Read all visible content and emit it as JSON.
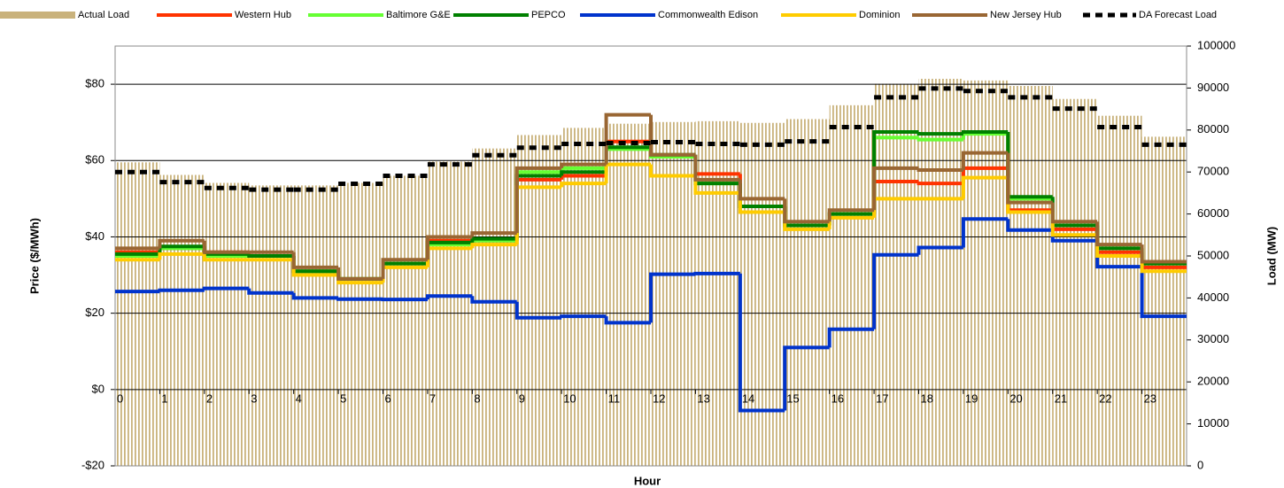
{
  "chart_data": {
    "type": "step-line",
    "x_label": "Hour",
    "y_label": "Price ($/MWh)",
    "y2_label": "Load (MW)",
    "x": [
      0,
      1,
      2,
      3,
      4,
      5,
      6,
      7,
      8,
      9,
      10,
      11,
      12,
      13,
      14,
      15,
      16,
      17,
      18,
      19,
      20,
      21,
      22,
      23
    ],
    "xlim": [
      0,
      24
    ],
    "xticks": [
      0,
      1,
      2,
      3,
      4,
      5,
      6,
      7,
      8,
      9,
      10,
      11,
      12,
      13,
      14,
      15,
      16,
      17,
      18,
      19,
      20,
      21,
      22,
      23
    ],
    "ylim": [
      -20,
      90
    ],
    "yticks": [
      {
        "value": -20,
        "label": "-$20"
      },
      {
        "value": 0,
        "label": "$0"
      },
      {
        "value": 20,
        "label": "$20"
      },
      {
        "value": 40,
        "label": "$40"
      },
      {
        "value": 60,
        "label": "$60"
      },
      {
        "value": 80,
        "label": "$80"
      }
    ],
    "y2lim": [
      0,
      100000
    ],
    "y2ticks": [
      0,
      10000,
      20000,
      30000,
      40000,
      50000,
      60000,
      70000,
      80000,
      90000,
      100000
    ],
    "grid": true,
    "series": [
      {
        "name": "Actual Load",
        "color": "#c9b27c",
        "axis": "y2",
        "style": "bar",
        "values": [
          72300,
          69300,
          67400,
          66800,
          66800,
          67400,
          69100,
          72500,
          75600,
          78800,
          80500,
          81500,
          81900,
          82100,
          81700,
          82600,
          85900,
          91000,
          92200,
          91800,
          90500,
          87400,
          83400,
          78400
        ]
      },
      {
        "name": "Western Hub",
        "color": "#ff3300",
        "values": [
          36,
          37,
          36,
          35,
          31,
          29,
          33,
          39,
          39,
          55,
          56,
          65,
          61,
          56.5,
          48,
          43,
          46,
          54.5,
          54,
          58,
          47,
          42,
          36,
          32
        ]
      },
      {
        "name": "Baltimore G&E",
        "color": "#66ff33",
        "values": [
          35,
          37,
          35,
          35,
          31,
          29,
          33,
          38,
          39,
          57,
          58,
          63,
          61,
          54,
          48,
          43,
          46,
          66,
          65.5,
          67,
          50,
          43,
          37,
          33
        ]
      },
      {
        "name": "PEPCO",
        "color": "#008000",
        "values": [
          35.5,
          37.5,
          35.5,
          35,
          31,
          29,
          33,
          38.5,
          39.5,
          56,
          57,
          63.5,
          61.5,
          54,
          48,
          43,
          46,
          67.5,
          67,
          67.5,
          50.5,
          43,
          37,
          33
        ]
      },
      {
        "name": "Commonwealth Edison",
        "color": "#0033cc",
        "values": [
          25.7,
          26,
          26.5,
          25.3,
          24,
          23.7,
          23.6,
          24.5,
          23,
          18.8,
          19.2,
          17.5,
          30.2,
          30.4,
          -5.5,
          11,
          15.8,
          35.3,
          37.2,
          44.7,
          41.8,
          39,
          32.2,
          19.2
        ]
      },
      {
        "name": "Dominion",
        "color": "#ffcc00",
        "values": [
          34,
          35.5,
          34,
          34,
          30,
          28,
          32,
          37,
          38,
          53,
          54,
          59,
          56,
          51.5,
          46.5,
          42,
          45,
          50,
          50,
          55.5,
          46.5,
          40.5,
          35,
          31
        ]
      },
      {
        "name": "New Jersey Hub",
        "color": "#996633",
        "values": [
          37,
          39,
          36,
          36,
          32,
          29,
          34,
          40,
          41,
          58,
          59,
          72,
          61.5,
          55,
          50,
          44,
          47,
          58,
          57.5,
          62,
          49,
          44,
          38,
          33.5
        ]
      },
      {
        "name": "DA Forecast Load",
        "color": "#000000",
        "axis": "y2",
        "style": "dashed",
        "values": [
          70000,
          67600,
          66200,
          65800,
          65800,
          67200,
          69100,
          71800,
          74000,
          75800,
          76700,
          76900,
          77100,
          76700,
          76500,
          77300,
          80700,
          87800,
          89900,
          89300,
          87800,
          85100,
          80700,
          76500
        ]
      }
    ]
  }
}
